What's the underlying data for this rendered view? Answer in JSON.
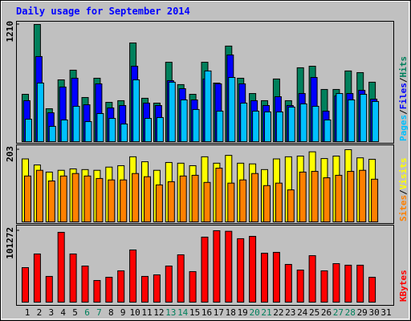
{
  "chart_data": [
    {
      "type": "bar",
      "title": "Daily usage for September 2014",
      "categories": [
        "1",
        "2",
        "3",
        "4",
        "5",
        "6",
        "7",
        "8",
        "9",
        "10",
        "11",
        "12",
        "13",
        "14",
        "15",
        "16",
        "17",
        "18",
        "19",
        "20",
        "21",
        "22",
        "23",
        "24",
        "25",
        "26",
        "27",
        "28",
        "29",
        "30",
        "31"
      ],
      "category_colors": [
        "#000000",
        "#000000",
        "#000000",
        "#000000",
        "#000000",
        "#00805c",
        "#00805c",
        "#000000",
        "#000000",
        "#000000",
        "#000000",
        "#000000",
        "#00805c",
        "#00805c",
        "#000000",
        "#000000",
        "#000000",
        "#000000",
        "#000000",
        "#00805c",
        "#00805c",
        "#000000",
        "#000000",
        "#000000",
        "#000000",
        "#000000",
        "#00805c",
        "#00805c",
        "#000000",
        "#000000",
        "#000000"
      ],
      "legend_separator": "/",
      "ylim": [
        0,
        1210
      ],
      "yticks": [
        1210
      ],
      "series": [
        {
          "name": "Hits",
          "color": "#00805c",
          "values": [
            489,
            1210,
            340,
            638,
            738,
            456,
            655,
            406,
            423,
            1019,
            448,
            398,
            820,
            589,
            489,
            820,
            605,
            987,
            655,
            497,
            423,
            647,
            423,
            763,
            779,
            539,
            539,
            730,
            713,
            614,
            0
          ]
        },
        {
          "name": "Files",
          "color": "#0000ff",
          "values": [
            423,
            879,
            298,
            564,
            655,
            381,
            597,
            348,
            373,
            779,
            398,
            373,
            630,
            547,
            431,
            647,
            597,
            895,
            597,
            423,
            373,
            464,
            373,
            497,
            663,
            315,
            472,
            497,
            530,
            439,
            0
          ]
        },
        {
          "name": "Pages",
          "color": "#00c0ff",
          "values": [
            232,
            605,
            158,
            224,
            365,
            207,
            290,
            240,
            182,
            638,
            240,
            249,
            614,
            431,
            332,
            730,
            315,
            663,
            398,
            315,
            307,
            307,
            357,
            390,
            365,
            224,
            497,
            431,
            489,
            415,
            0
          ]
        }
      ]
    },
    {
      "type": "bar",
      "ylim": [
        0,
        203
      ],
      "yticks": [
        203
      ],
      "series": [
        {
          "name": "Visits",
          "color": "#ffff00",
          "values": [
            177,
            160,
            140,
            145,
            149,
            147,
            145,
            154,
            158,
            183,
            169,
            145,
            167,
            165,
            158,
            183,
            165,
            187,
            165,
            163,
            147,
            177,
            183,
            185,
            197,
            178,
            185,
            203,
            180,
            176,
            0
          ]
        },
        {
          "name": "Sites",
          "color": "#ff8000",
          "values": [
            129,
            145,
            115,
            129,
            136,
            129,
            122,
            118,
            118,
            136,
            127,
            104,
            113,
            129,
            131,
            111,
            151,
            109,
            118,
            136,
            102,
            109,
            90,
            140,
            142,
            124,
            131,
            142,
            145,
            120,
            0
          ]
        }
      ]
    },
    {
      "type": "bar",
      "ylim": [
        0,
        101272
      ],
      "yticks": [
        101272
      ],
      "series": [
        {
          "name": "KBytes",
          "color": "#ff0000",
          "values": [
            48940,
            68300,
            36500,
            99000,
            68300,
            51200,
            30700,
            35300,
            44400,
            74000,
            36500,
            38700,
            51200,
            67100,
            43300,
            92200,
            101272,
            100500,
            90000,
            93300,
            69400,
            70600,
            53500,
            45500,
            65900,
            44400,
            54600,
            52400,
            52400,
            35300,
            0
          ]
        }
      ]
    }
  ]
}
